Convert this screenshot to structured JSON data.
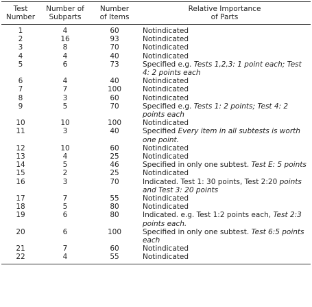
{
  "table": {
    "header": [
      [
        "Test",
        "Number"
      ],
      [
        "Number of",
        "Subparts"
      ],
      [
        "Number",
        "of Items"
      ],
      [
        "Relative Importance",
        "of Parts"
      ]
    ],
    "rows": [
      [
        1,
        4,
        60,
        [
          "Notindicated"
        ]
      ],
      [
        2,
        16,
        93,
        [
          "Notindicated"
        ]
      ],
      [
        3,
        8,
        70,
        [
          "Notindicated"
        ]
      ],
      [
        4,
        4,
        40,
        [
          "Notindicated"
        ]
      ],
      [
        5,
        6,
        73,
        [
          "Specified e.g. ",
          "Tests 1,2,3: 1 point each; Test 4: 2 points each"
        ]
      ],
      [
        6,
        4,
        40,
        [
          "Notindicated"
        ]
      ],
      [
        7,
        7,
        100,
        [
          "Notindicated"
        ]
      ],
      [
        8,
        3,
        60,
        [
          "Notindicated"
        ]
      ],
      [
        9,
        5,
        70,
        [
          "Specified e.g. ",
          "Tests 1: 2 points; Test 4: 2 points each"
        ]
      ],
      [
        10,
        10,
        100,
        [
          "Notindicated"
        ]
      ],
      [
        11,
        3,
        40,
        [
          "Specified ",
          "Every item in all subtests is worth one point."
        ]
      ],
      [
        12,
        10,
        60,
        [
          "Notindicated"
        ]
      ],
      [
        13,
        4,
        25,
        [
          "Notindicated"
        ]
      ],
      [
        14,
        5,
        46,
        [
          "Specified in only one subtest. ",
          "Test E: 5 points"
        ]
      ],
      [
        15,
        2,
        25,
        [
          "Notindicated"
        ]
      ],
      [
        16,
        3,
        70,
        [
          "Indicated. Test 1: 30 points, Test 2:20 ",
          "points and Test 3: 20 points"
        ]
      ],
      [
        17,
        7,
        55,
        [
          "Notindicated"
        ]
      ],
      [
        18,
        5,
        80,
        [
          "Notindicated"
        ]
      ],
      [
        19,
        6,
        80,
        [
          "Indicated. e.g. Test 1:2 points each, ",
          "Test 2:3 points each."
        ]
      ],
      [
        20,
        6,
        100,
        [
          "Specified in only one subtest. ",
          "Test 6:5 points each"
        ]
      ],
      [
        21,
        7,
        60,
        [
          "Notindicated"
        ]
      ],
      [
        22,
        4,
        55,
        [
          "Notindicated"
        ]
      ]
    ]
  }
}
